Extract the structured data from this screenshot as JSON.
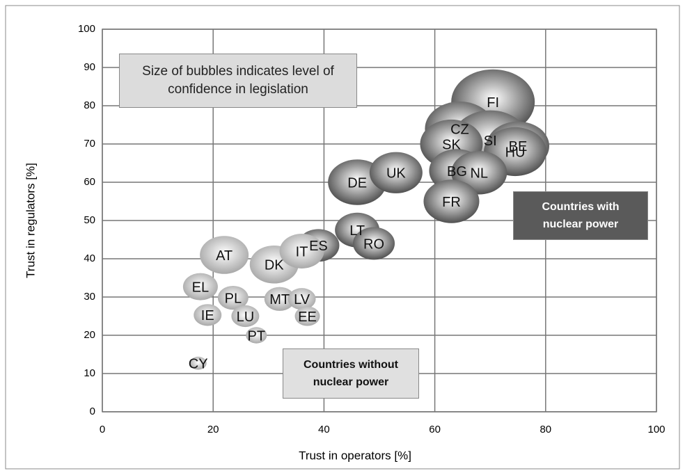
{
  "chart_data": {
    "type": "bubble",
    "xlabel": "Trust in operators [%]",
    "ylabel": "Trust in regulators [%]",
    "annotation": "Size of bubbles indicates level of confidence in legislation",
    "xlim": [
      0,
      100
    ],
    "xticks": [
      0,
      20,
      40,
      60,
      80,
      100
    ],
    "ylim": [
      0,
      100
    ],
    "yticks": [
      0,
      10,
      20,
      30,
      40,
      50,
      60,
      70,
      80,
      90,
      100
    ],
    "grid": true,
    "series": [
      {
        "name": "Countries with nuclear power",
        "color": "#505050",
        "labels": [
          "FI",
          "CZ",
          "SI",
          "SK",
          "BE",
          "HU",
          "DE",
          "BG",
          "NL",
          "FR",
          "UK",
          "LT",
          "ES",
          "RO"
        ],
        "x": [
          70.5,
          64.5,
          70,
          63,
          75,
          74.5,
          46,
          64,
          68,
          63,
          53,
          46,
          39,
          49
        ],
        "values": [
          81,
          74,
          71,
          70,
          69.5,
          68,
          60,
          63,
          62.5,
          55,
          62.5,
          47.5,
          43.5,
          44
        ],
        "sizes": [
          60,
          50,
          55,
          45,
          45,
          45,
          42,
          40,
          40,
          40,
          38,
          32,
          30,
          30
        ]
      },
      {
        "name": "Countries without nuclear power",
        "color": "#a8a8a8",
        "labels": [
          "AT",
          "DK",
          "IT",
          "EL",
          "PL",
          "MT",
          "IE",
          "LU",
          "LV",
          "EE",
          "PT",
          "CY"
        ],
        "x": [
          22,
          31,
          36,
          17.7,
          23.6,
          32,
          19,
          25.8,
          36,
          37,
          27.8,
          17.3
        ],
        "values": [
          41,
          38.5,
          42,
          32.7,
          29.8,
          29.5,
          25.3,
          25,
          29.5,
          25,
          20,
          12.7
        ],
        "sizes": [
          35,
          35,
          32,
          25,
          22,
          22,
          20,
          20,
          20,
          18,
          15,
          12
        ]
      }
    ]
  }
}
